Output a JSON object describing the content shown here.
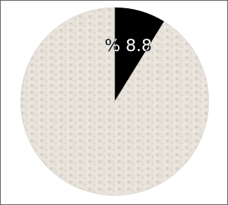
{
  "chart_data": {
    "type": "pie",
    "values": [
      8.8,
      91.2
    ],
    "value_labels": [
      "% 8.8",
      null
    ],
    "colors": [
      "#000000",
      "#e7e2d9"
    ]
  }
}
